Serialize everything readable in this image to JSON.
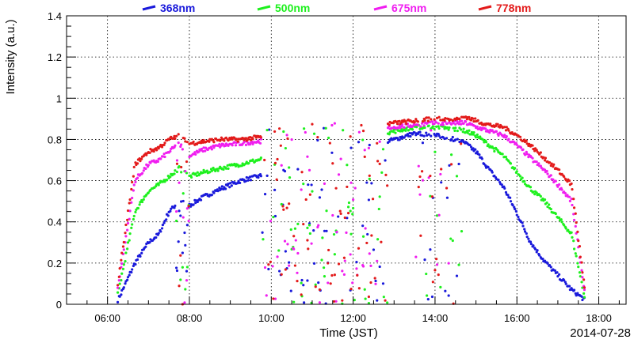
{
  "chart_data": {
    "type": "scatter",
    "title": "",
    "xlabel": "Time (JST)",
    "ylabel": "Intensity (a.u.)",
    "date_label": "2014-07-28",
    "xlim": [
      "05:00",
      "18:40"
    ],
    "ylim": [
      0,
      1.4
    ],
    "x_ticks": [
      "06:00",
      "08:00",
      "10:00",
      "12:00",
      "14:00",
      "16:00",
      "18:00"
    ],
    "y_ticks": [
      "0",
      "0.2",
      "0.4",
      "0.6",
      "0.8",
      "1",
      "1.2",
      "1.4"
    ],
    "grid": true,
    "legend_position": "top",
    "series": [
      {
        "name": "368nm",
        "color": "#1a1adb",
        "x": [
          "06:15",
          "06:40",
          "07:00",
          "07:15",
          "07:30",
          "07:45",
          "08:00",
          "08:20",
          "08:45",
          "09:15",
          "09:40",
          "13:00",
          "13:30",
          "14:00",
          "14:30",
          "14:45",
          "15:00",
          "15:20",
          "15:40",
          "16:00",
          "16:20",
          "16:40",
          "17:00",
          "17:20",
          "17:40"
        ],
        "values": [
          0.02,
          0.2,
          0.3,
          0.34,
          0.45,
          0.5,
          0.48,
          0.52,
          0.56,
          0.6,
          0.62,
          0.8,
          0.83,
          0.82,
          0.8,
          0.78,
          0.74,
          0.65,
          0.57,
          0.44,
          0.3,
          0.21,
          0.14,
          0.07,
          0.02
        ]
      },
      {
        "name": "500nm",
        "color": "#1ef01e",
        "x": [
          "06:15",
          "06:40",
          "07:00",
          "07:15",
          "07:30",
          "07:45",
          "08:00",
          "08:20",
          "08:45",
          "09:15",
          "09:40",
          "13:00",
          "13:30",
          "14:00",
          "14:30",
          "14:45",
          "15:00",
          "15:20",
          "15:40",
          "16:00",
          "16:20",
          "16:40",
          "17:00",
          "17:20",
          "17:40"
        ],
        "values": [
          0.05,
          0.45,
          0.55,
          0.58,
          0.62,
          0.66,
          0.62,
          0.64,
          0.66,
          0.68,
          0.7,
          0.84,
          0.86,
          0.86,
          0.85,
          0.84,
          0.82,
          0.77,
          0.72,
          0.64,
          0.56,
          0.5,
          0.42,
          0.34,
          0.02
        ]
      },
      {
        "name": "675nm",
        "color": "#f01ef0",
        "x": [
          "06:15",
          "06:40",
          "07:00",
          "07:15",
          "07:30",
          "07:45",
          "08:00",
          "08:20",
          "08:45",
          "09:15",
          "09:40",
          "13:00",
          "13:30",
          "14:00",
          "14:30",
          "14:45",
          "15:00",
          "15:20",
          "15:40",
          "16:00",
          "16:20",
          "16:40",
          "17:00",
          "17:20",
          "17:40"
        ],
        "values": [
          0.08,
          0.6,
          0.68,
          0.7,
          0.74,
          0.78,
          0.72,
          0.75,
          0.77,
          0.78,
          0.79,
          0.86,
          0.87,
          0.88,
          0.88,
          0.88,
          0.86,
          0.84,
          0.82,
          0.77,
          0.71,
          0.65,
          0.58,
          0.5,
          0.04
        ]
      },
      {
        "name": "778nm",
        "color": "#e31a1a",
        "x": [
          "06:15",
          "06:40",
          "07:00",
          "07:15",
          "07:30",
          "07:45",
          "08:00",
          "08:20",
          "08:45",
          "09:15",
          "09:40",
          "13:00",
          "13:30",
          "14:00",
          "14:30",
          "14:45",
          "15:00",
          "15:20",
          "15:40",
          "16:00",
          "16:20",
          "16:40",
          "17:00",
          "17:20",
          "17:40"
        ],
        "values": [
          0.1,
          0.68,
          0.74,
          0.76,
          0.8,
          0.82,
          0.78,
          0.79,
          0.8,
          0.8,
          0.81,
          0.88,
          0.89,
          0.9,
          0.9,
          0.91,
          0.89,
          0.87,
          0.86,
          0.82,
          0.77,
          0.71,
          0.65,
          0.58,
          0.05
        ]
      }
    ]
  }
}
